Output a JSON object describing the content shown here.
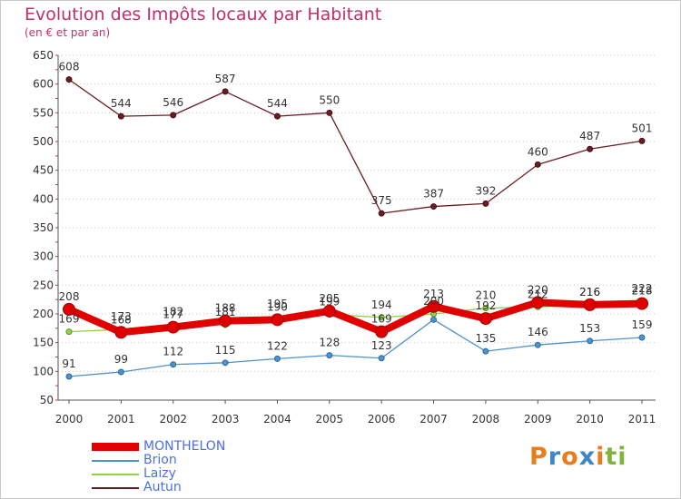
{
  "chart_data": {
    "type": "line",
    "title": "Evolution des Impôts locaux par Habitant",
    "subtitle": "(en € et par an)",
    "x": [
      "2000",
      "2001",
      "2002",
      "2003",
      "2004",
      "2005",
      "2006",
      "2007",
      "2008",
      "2009",
      "2010",
      "2011"
    ],
    "ylim": [
      50,
      650
    ],
    "yticks": [
      50,
      100,
      150,
      200,
      250,
      300,
      350,
      400,
      450,
      500,
      550,
      600,
      650
    ],
    "series": [
      {
        "name": "Autun",
        "color": "#6b1d24",
        "values": [
          608,
          544,
          546,
          587,
          544,
          550,
          375,
          387,
          392,
          460,
          487,
          501
        ]
      },
      {
        "name": "Brion",
        "color": "#4f93cc",
        "values": [
          91,
          99,
          112,
          115,
          122,
          128,
          123,
          190,
          135,
          146,
          153,
          159
        ]
      },
      {
        "name": "Laizy",
        "color": "#92d14a",
        "values": [
          169,
          173,
          182,
          181,
          195,
          199,
          194,
          200,
          210,
          212,
          216,
          222
        ]
      },
      {
        "name": "MONTHELON",
        "color": "#e00000",
        "values": [
          208,
          168,
          177,
          188,
          190,
          205,
          169,
          213,
          192,
          220,
          216,
          218
        ]
      }
    ],
    "data_labels": {
      "Autun": [
        "608",
        "544",
        "546",
        "587",
        "544",
        "550",
        "375",
        "387",
        "392",
        "460",
        "487",
        "501"
      ],
      "Brion": [
        "91",
        "99",
        "112",
        "115",
        "122",
        "128",
        "123",
        "",
        "135",
        "146",
        "153",
        "159"
      ],
      "Laizy": [
        "169",
        "173",
        "182",
        "181",
        "195",
        "199",
        "194",
        "200",
        "210",
        "212",
        "216",
        "222"
      ],
      "MONTHELON": [
        "208",
        "168",
        "177",
        "188",
        "190",
        "205",
        "169",
        "213",
        "192",
        "220",
        "216",
        "218"
      ]
    },
    "legend": [
      {
        "name": "MONTHELON",
        "color": "#e00000",
        "weight": "thick"
      },
      {
        "name": "Brion",
        "color": "#4f93cc",
        "weight": "thin"
      },
      {
        "name": "Laizy",
        "color": "#92d14a",
        "weight": "thin"
      },
      {
        "name": "Autun",
        "color": "#6b1d24",
        "weight": "thin"
      }
    ],
    "grid": "horizontal-dotted",
    "legend_position": "bottom-left"
  },
  "logo": {
    "letters": [
      "P",
      "r",
      "o",
      "x",
      "i",
      "t",
      "i"
    ],
    "colors": [
      "#e97d1c",
      "#3c87c8",
      "#e97d1c",
      "#3c87c8",
      "#e97d1c",
      "#7fb33d",
      "#7fb33d"
    ]
  }
}
